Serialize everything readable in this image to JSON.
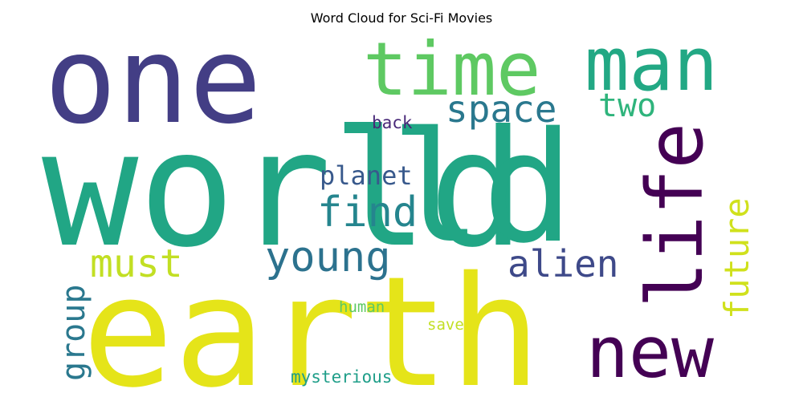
{
  "chart_data": {
    "type": "wordcloud",
    "title": "Word Cloud for Sci-Fi Movies",
    "words": [
      {
        "text": "world",
        "weight": 1.0,
        "color": "#21a685"
      },
      {
        "text": "one",
        "weight": 0.8,
        "color": "#433e85"
      },
      {
        "text": "earth",
        "weight": 0.88,
        "color": "#e5e419"
      },
      {
        "text": "ld",
        "weight": 0.95,
        "color": "#21a685"
      },
      {
        "text": "time",
        "weight": 0.55,
        "color": "#5ec962"
      },
      {
        "text": "man",
        "weight": 0.55,
        "color": "#22a884"
      },
      {
        "text": "life",
        "weight": 0.55,
        "color": "#440154"
      },
      {
        "text": "new",
        "weight": 0.5,
        "color": "#440154"
      },
      {
        "text": "space",
        "weight": 0.25,
        "color": "#2a788e"
      },
      {
        "text": "two",
        "weight": 0.23,
        "color": "#2fb47c"
      },
      {
        "text": "find",
        "weight": 0.27,
        "color": "#25858e"
      },
      {
        "text": "planet",
        "weight": 0.18,
        "color": "#38598c"
      },
      {
        "text": "young",
        "weight": 0.28,
        "color": "#2c728e"
      },
      {
        "text": "must",
        "weight": 0.25,
        "color": "#c2df23"
      },
      {
        "text": "alien",
        "weight": 0.25,
        "color": "#3e4989"
      },
      {
        "text": "future",
        "weight": 0.2,
        "color": "#d0e11c"
      },
      {
        "text": "group",
        "weight": 0.2,
        "color": "#2a788e"
      },
      {
        "text": "back",
        "weight": 0.12,
        "color": "#482878"
      },
      {
        "text": "human",
        "weight": 0.11,
        "color": "#5ec962"
      },
      {
        "text": "save",
        "weight": 0.11,
        "color": "#c2df23"
      },
      {
        "text": "mysterious",
        "weight": 0.12,
        "color": "#1f9e89"
      }
    ]
  }
}
